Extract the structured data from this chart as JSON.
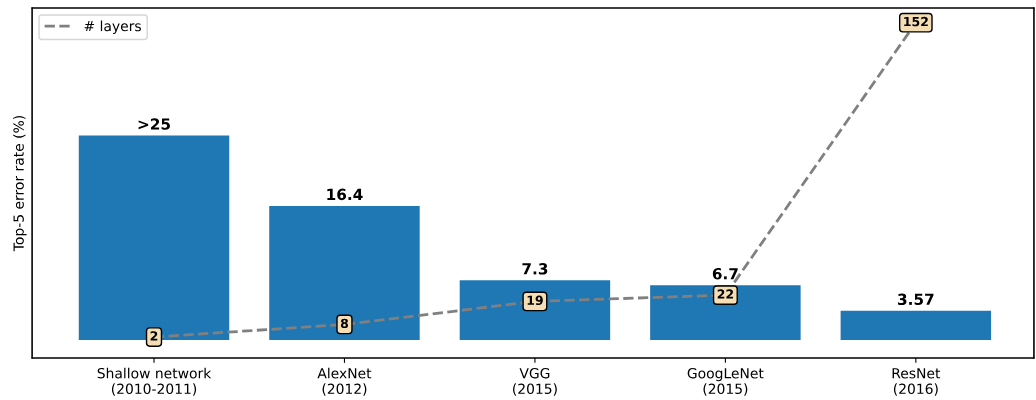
{
  "chart_data": {
    "type": "bar",
    "ylabel": "Top-5 error rate (%)",
    "categories": [
      "Shallow network\n(2010-2011)",
      "AlexNet\n(2012)",
      "VGG\n(2015)",
      "GoogLeNet\n(2015)",
      "ResNet\n(2016)"
    ],
    "ylim": [
      -2.2,
      40.6
    ],
    "y2lim": [
      -8,
      159
    ],
    "tick_labels": "x",
    "legend": "top left",
    "grid": false,
    "series": [
      {
        "color": "#1f77b4",
        "values": [
          25,
          16.4,
          7.3,
          6.7,
          3.57
        ],
        "value_labels": [
          ">25",
          "16.4",
          "7.3",
          "6.7",
          "3.57"
        ]
      },
      {
        "type": "line",
        "axis": "y2",
        "name": "# layers",
        "color": "#808080",
        "line_style": "dashed",
        "marker": "square",
        "data_labels": true,
        "values": [
          2,
          8,
          19,
          22,
          152
        ]
      }
    ]
  }
}
